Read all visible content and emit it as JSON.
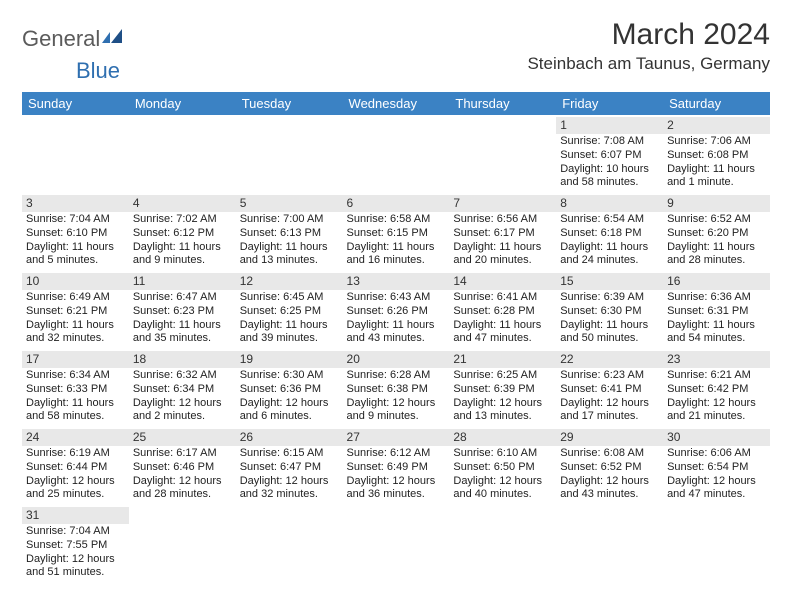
{
  "logo": {
    "text1": "General",
    "text2": "Blue"
  },
  "title": "March 2024",
  "location": "Steinbach am Taunus, Germany",
  "colors": {
    "header_bg": "#3b82c4",
    "header_text": "#ffffff",
    "daynum_bg": "#e8e8e8",
    "body_text": "#222222",
    "logo_gray": "#5b5b5b",
    "logo_blue": "#2f6fb0",
    "page_bg": "#ffffff"
  },
  "weekdays": [
    "Sunday",
    "Monday",
    "Tuesday",
    "Wednesday",
    "Thursday",
    "Friday",
    "Saturday"
  ],
  "weeks": [
    [
      null,
      null,
      null,
      null,
      null,
      {
        "n": "1",
        "sr": "Sunrise: 7:08 AM",
        "ss": "Sunset: 6:07 PM",
        "d1": "Daylight: 10 hours",
        "d2": "and 58 minutes."
      },
      {
        "n": "2",
        "sr": "Sunrise: 7:06 AM",
        "ss": "Sunset: 6:08 PM",
        "d1": "Daylight: 11 hours",
        "d2": "and 1 minute."
      }
    ],
    [
      {
        "n": "3",
        "sr": "Sunrise: 7:04 AM",
        "ss": "Sunset: 6:10 PM",
        "d1": "Daylight: 11 hours",
        "d2": "and 5 minutes."
      },
      {
        "n": "4",
        "sr": "Sunrise: 7:02 AM",
        "ss": "Sunset: 6:12 PM",
        "d1": "Daylight: 11 hours",
        "d2": "and 9 minutes."
      },
      {
        "n": "5",
        "sr": "Sunrise: 7:00 AM",
        "ss": "Sunset: 6:13 PM",
        "d1": "Daylight: 11 hours",
        "d2": "and 13 minutes."
      },
      {
        "n": "6",
        "sr": "Sunrise: 6:58 AM",
        "ss": "Sunset: 6:15 PM",
        "d1": "Daylight: 11 hours",
        "d2": "and 16 minutes."
      },
      {
        "n": "7",
        "sr": "Sunrise: 6:56 AM",
        "ss": "Sunset: 6:17 PM",
        "d1": "Daylight: 11 hours",
        "d2": "and 20 minutes."
      },
      {
        "n": "8",
        "sr": "Sunrise: 6:54 AM",
        "ss": "Sunset: 6:18 PM",
        "d1": "Daylight: 11 hours",
        "d2": "and 24 minutes."
      },
      {
        "n": "9",
        "sr": "Sunrise: 6:52 AM",
        "ss": "Sunset: 6:20 PM",
        "d1": "Daylight: 11 hours",
        "d2": "and 28 minutes."
      }
    ],
    [
      {
        "n": "10",
        "sr": "Sunrise: 6:49 AM",
        "ss": "Sunset: 6:21 PM",
        "d1": "Daylight: 11 hours",
        "d2": "and 32 minutes."
      },
      {
        "n": "11",
        "sr": "Sunrise: 6:47 AM",
        "ss": "Sunset: 6:23 PM",
        "d1": "Daylight: 11 hours",
        "d2": "and 35 minutes."
      },
      {
        "n": "12",
        "sr": "Sunrise: 6:45 AM",
        "ss": "Sunset: 6:25 PM",
        "d1": "Daylight: 11 hours",
        "d2": "and 39 minutes."
      },
      {
        "n": "13",
        "sr": "Sunrise: 6:43 AM",
        "ss": "Sunset: 6:26 PM",
        "d1": "Daylight: 11 hours",
        "d2": "and 43 minutes."
      },
      {
        "n": "14",
        "sr": "Sunrise: 6:41 AM",
        "ss": "Sunset: 6:28 PM",
        "d1": "Daylight: 11 hours",
        "d2": "and 47 minutes."
      },
      {
        "n": "15",
        "sr": "Sunrise: 6:39 AM",
        "ss": "Sunset: 6:30 PM",
        "d1": "Daylight: 11 hours",
        "d2": "and 50 minutes."
      },
      {
        "n": "16",
        "sr": "Sunrise: 6:36 AM",
        "ss": "Sunset: 6:31 PM",
        "d1": "Daylight: 11 hours",
        "d2": "and 54 minutes."
      }
    ],
    [
      {
        "n": "17",
        "sr": "Sunrise: 6:34 AM",
        "ss": "Sunset: 6:33 PM",
        "d1": "Daylight: 11 hours",
        "d2": "and 58 minutes."
      },
      {
        "n": "18",
        "sr": "Sunrise: 6:32 AM",
        "ss": "Sunset: 6:34 PM",
        "d1": "Daylight: 12 hours",
        "d2": "and 2 minutes."
      },
      {
        "n": "19",
        "sr": "Sunrise: 6:30 AM",
        "ss": "Sunset: 6:36 PM",
        "d1": "Daylight: 12 hours",
        "d2": "and 6 minutes."
      },
      {
        "n": "20",
        "sr": "Sunrise: 6:28 AM",
        "ss": "Sunset: 6:38 PM",
        "d1": "Daylight: 12 hours",
        "d2": "and 9 minutes."
      },
      {
        "n": "21",
        "sr": "Sunrise: 6:25 AM",
        "ss": "Sunset: 6:39 PM",
        "d1": "Daylight: 12 hours",
        "d2": "and 13 minutes."
      },
      {
        "n": "22",
        "sr": "Sunrise: 6:23 AM",
        "ss": "Sunset: 6:41 PM",
        "d1": "Daylight: 12 hours",
        "d2": "and 17 minutes."
      },
      {
        "n": "23",
        "sr": "Sunrise: 6:21 AM",
        "ss": "Sunset: 6:42 PM",
        "d1": "Daylight: 12 hours",
        "d2": "and 21 minutes."
      }
    ],
    [
      {
        "n": "24",
        "sr": "Sunrise: 6:19 AM",
        "ss": "Sunset: 6:44 PM",
        "d1": "Daylight: 12 hours",
        "d2": "and 25 minutes."
      },
      {
        "n": "25",
        "sr": "Sunrise: 6:17 AM",
        "ss": "Sunset: 6:46 PM",
        "d1": "Daylight: 12 hours",
        "d2": "and 28 minutes."
      },
      {
        "n": "26",
        "sr": "Sunrise: 6:15 AM",
        "ss": "Sunset: 6:47 PM",
        "d1": "Daylight: 12 hours",
        "d2": "and 32 minutes."
      },
      {
        "n": "27",
        "sr": "Sunrise: 6:12 AM",
        "ss": "Sunset: 6:49 PM",
        "d1": "Daylight: 12 hours",
        "d2": "and 36 minutes."
      },
      {
        "n": "28",
        "sr": "Sunrise: 6:10 AM",
        "ss": "Sunset: 6:50 PM",
        "d1": "Daylight: 12 hours",
        "d2": "and 40 minutes."
      },
      {
        "n": "29",
        "sr": "Sunrise: 6:08 AM",
        "ss": "Sunset: 6:52 PM",
        "d1": "Daylight: 12 hours",
        "d2": "and 43 minutes."
      },
      {
        "n": "30",
        "sr": "Sunrise: 6:06 AM",
        "ss": "Sunset: 6:54 PM",
        "d1": "Daylight: 12 hours",
        "d2": "and 47 minutes."
      }
    ],
    [
      {
        "n": "31",
        "sr": "Sunrise: 7:04 AM",
        "ss": "Sunset: 7:55 PM",
        "d1": "Daylight: 12 hours",
        "d2": "and 51 minutes."
      },
      null,
      null,
      null,
      null,
      null,
      null
    ]
  ]
}
